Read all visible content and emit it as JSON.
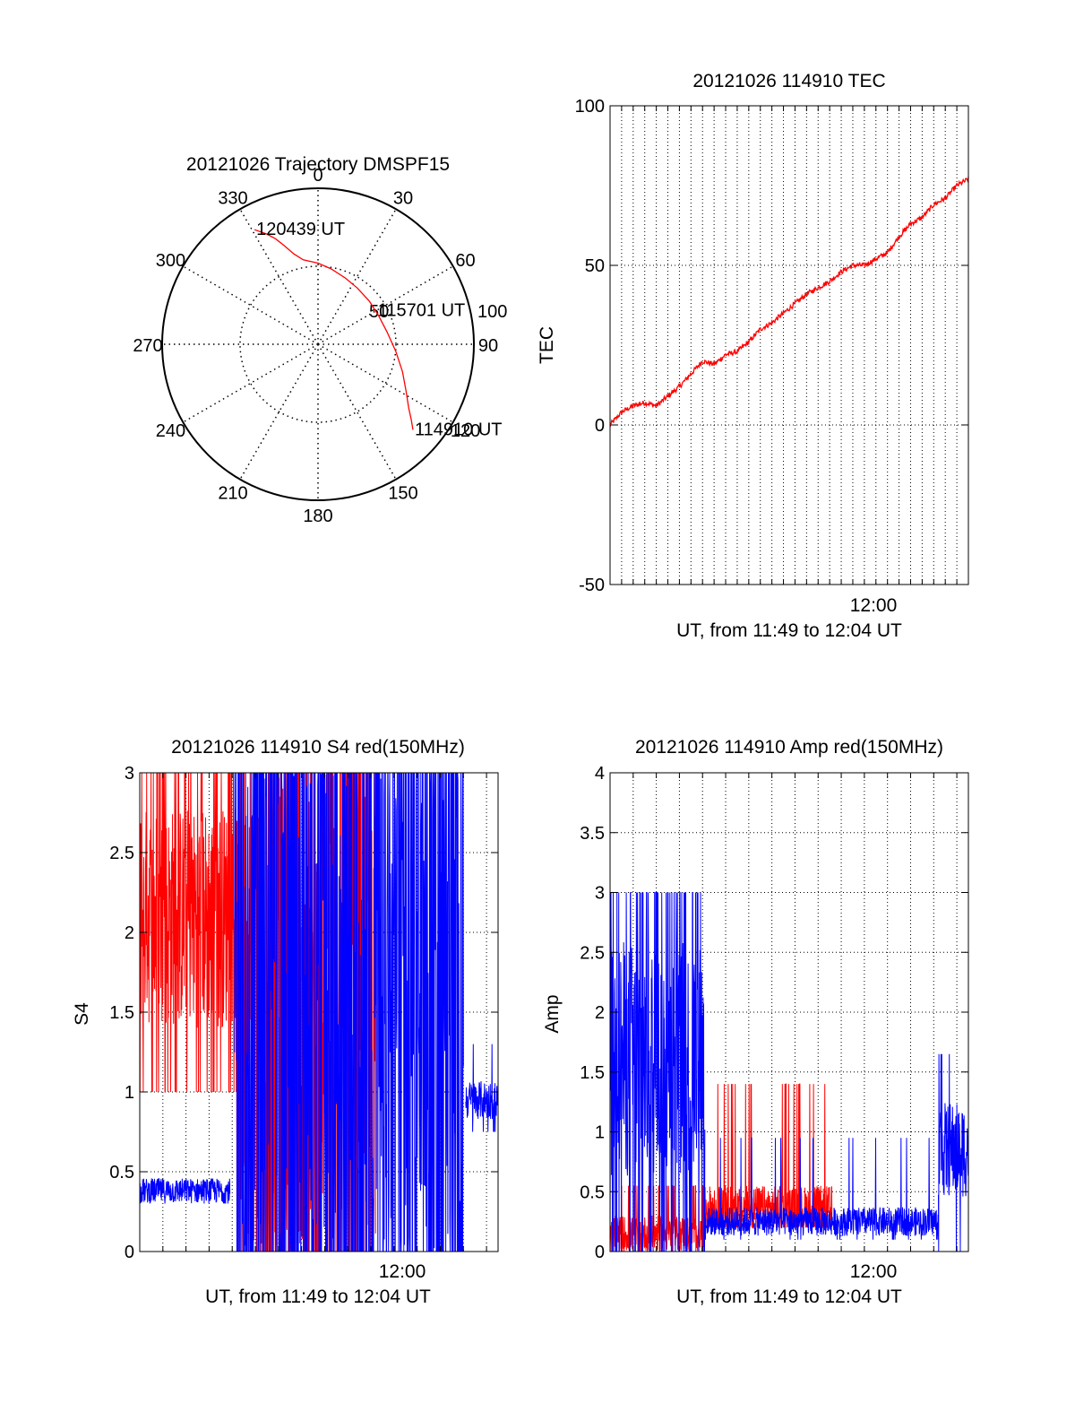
{
  "chart_data": [
    {
      "type": "polar",
      "title": "20121026 Trajectory DMSPF15",
      "angle_labels": [
        "0",
        "30",
        "60",
        "90",
        "120",
        "150",
        "180",
        "210",
        "240",
        "270",
        "300",
        "330"
      ],
      "angle_values": [
        0,
        30,
        60,
        90,
        120,
        150,
        180,
        210,
        240,
        270,
        300,
        330
      ],
      "radial_ticks": [
        50,
        100
      ],
      "radial_tick_labels": [
        "50",
        "100"
      ],
      "radial_max": 100,
      "circle_radius_of_dotted_ring": 50,
      "series": [
        {
          "color": "#ff0000",
          "points_az_el": [
            [
              331,
              84
            ],
            [
              335,
              78
            ],
            [
              338,
              73
            ],
            [
              341,
              67
            ],
            [
              345,
              60
            ],
            [
              350,
              55
            ],
            [
              0,
              52
            ],
            [
              10,
              49
            ],
            [
              22,
              46
            ],
            [
              35,
              44
            ],
            [
              50,
              43
            ],
            [
              65,
              43
            ],
            [
              80,
              45
            ],
            [
              95,
              50
            ],
            [
              108,
              57
            ],
            [
              118,
              64
            ],
            [
              125,
              71
            ],
            [
              129,
              77
            ],
            [
              132,
              82
            ]
          ]
        }
      ],
      "annotations": [
        {
          "text": "120439 UT",
          "az": 331,
          "el": 84
        },
        {
          "text": "115701 UT",
          "az": 60,
          "el": 43
        },
        {
          "text": "114910 UT",
          "az": 132,
          "el": 82
        }
      ]
    },
    {
      "type": "line",
      "title": "20121026 114910 TEC",
      "xlabel": "UT, from 11:49 to 12:04 UT",
      "ylabel": "TEC",
      "xlim": [
        0,
        15.5
      ],
      "ylim": [
        -50,
        100
      ],
      "x_tick_label": "12:00",
      "x_tick_label_value": 11,
      "x_grid_step": 0.5,
      "y_ticks": [
        -50,
        0,
        50,
        100
      ],
      "y_tick_labels": [
        "-50",
        "0",
        "50",
        "100"
      ],
      "grid": true,
      "series": [
        {
          "color": "#ff0000",
          "x": [
            0,
            0.5,
            1,
            1.5,
            2,
            2.5,
            3,
            3.5,
            4,
            4.5,
            5,
            5.5,
            6,
            6.5,
            7,
            7.5,
            8,
            8.5,
            9,
            9.5,
            10,
            10.5,
            11,
            11.5,
            12,
            12.5,
            13,
            13.5,
            14,
            14.5,
            15,
            15.5
          ],
          "values": [
            0,
            4,
            6,
            7,
            6,
            9,
            12,
            16,
            20,
            19,
            22,
            23,
            26,
            30,
            32,
            35,
            38,
            41,
            43,
            45,
            48,
            50,
            50,
            52,
            54,
            59,
            63,
            65,
            69,
            71,
            75,
            77
          ]
        }
      ]
    },
    {
      "type": "line",
      "title": "20121026 114910 S4 red(150MHz)",
      "xlabel": "UT, from 11:49 to 12:04 UT",
      "ylabel": "S4",
      "xlim": [
        0,
        15.5
      ],
      "ylim": [
        0,
        3
      ],
      "x_tick_label": "12:00",
      "x_tick_label_value": 11,
      "x_grid_step": 1,
      "y_ticks": [
        0,
        0.5,
        1,
        1.5,
        2,
        2.5,
        3
      ],
      "y_tick_labels": [
        "0",
        "0.5",
        "1",
        "1.5",
        "2",
        "2.5",
        "3"
      ],
      "grid": true,
      "series": [
        {
          "color": "#ff0000",
          "segments": [
            {
              "x0": 0,
              "x1": 4.2,
              "base": 2.1,
              "spread": 0.7,
              "spike": 0.18,
              "spike_high": 3,
              "spike_low": 1.0
            },
            {
              "x0": 4.2,
              "x1": 10.2,
              "base": 1.5,
              "spread": 1.5,
              "spike": 0.35,
              "spike_high": 3,
              "spike_low": 0
            }
          ]
        },
        {
          "color": "#0000ff",
          "segments": [
            {
              "x0": 0,
              "x1": 3.9,
              "base": 0.38,
              "spread": 0.08,
              "spike": 0,
              "spike_high": 0.55,
              "spike_low": 0.28
            },
            {
              "x0": 4.1,
              "x1": 14,
              "base": 1.5,
              "spread": 1.5,
              "spike": 0.55,
              "spike_high": 3,
              "spike_low": 0
            },
            {
              "x0": 14.1,
              "x1": 15.5,
              "base": 0.95,
              "spread": 0.12,
              "spike": 0.05,
              "spike_high": 1.3,
              "spike_low": 0.75
            }
          ]
        }
      ]
    },
    {
      "type": "line",
      "title": "20121026 114910 Amp red(150MHz)",
      "xlabel": "UT, from 11:49 to 12:04 UT",
      "ylabel": "Amp",
      "xlim": [
        0,
        15.5
      ],
      "ylim": [
        0,
        4
      ],
      "x_tick_label": "12:00",
      "x_tick_label_value": 11,
      "x_grid_step": 1,
      "y_ticks": [
        0,
        0.5,
        1,
        1.5,
        2,
        2.5,
        3,
        3.5,
        4
      ],
      "y_tick_labels": [
        "0",
        "0.5",
        "1",
        "1.5",
        "2",
        "2.5",
        "3",
        "3.5",
        "4"
      ],
      "grid": true,
      "series": [
        {
          "color": "#ff0000",
          "segments": [
            {
              "x0": 0,
              "x1": 4.1,
              "base": 0.15,
              "spread": 0.15,
              "spike": 0.1,
              "spike_high": 0.55,
              "spike_low": 0
            },
            {
              "x0": 4.1,
              "x1": 9.6,
              "base": 0.35,
              "spread": 0.2,
              "spike": 0.08,
              "spike_high": 1.4,
              "spike_low": 0.2
            }
          ]
        },
        {
          "color": "#0000ff",
          "segments": [
            {
              "x0": 0,
              "x1": 4.1,
              "base": 1.6,
              "spread": 1.0,
              "spike": 0.25,
              "spike_high": 3.0,
              "spike_low": 0
            },
            {
              "x0": 4.1,
              "x1": 14.2,
              "base": 0.25,
              "spread": 0.12,
              "spike": 0.04,
              "spike_high": 0.95,
              "spike_low": 0.1
            },
            {
              "x0": 14.2,
              "x1": 15.5,
              "base": 0.85,
              "spread": 0.4,
              "spike": 0.12,
              "spike_high": 1.65,
              "spike_low": 0
            }
          ]
        }
      ]
    }
  ]
}
